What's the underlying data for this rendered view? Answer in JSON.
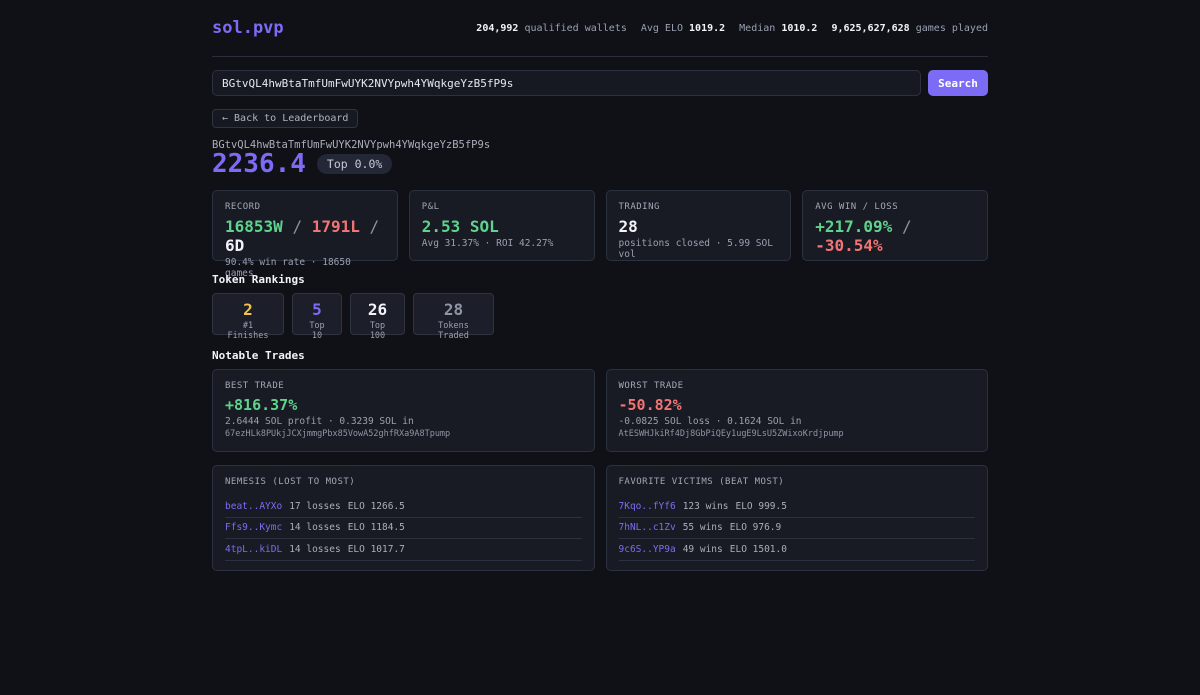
{
  "header": {
    "logo": "sol.pvp",
    "stats": [
      {
        "value": "204,992",
        "label": "qualified wallets"
      },
      {
        "label": "Avg ELO",
        "value": "1019.2"
      },
      {
        "label": "Median",
        "value": "1010.2"
      },
      {
        "value": "9,625,627,628",
        "label": "games played"
      }
    ]
  },
  "search": {
    "value": "BGtvQL4hwBtaTmfUmFwUYK2NVYpwh4YWqkgeYzB5fP9s",
    "button": "Search"
  },
  "back_label": "← Back to Leaderboard",
  "profile": {
    "address": "BGtvQL4hwBtaTmfUmFwUYK2NVYpwh4YWqkgeYzB5fP9s",
    "elo": "2236.4",
    "rank_badge": "Top 0.0%"
  },
  "cards": {
    "record": {
      "label": "RECORD",
      "wins": "16853W",
      "losses": "1791L",
      "draws": "6D",
      "sep": "/",
      "sub": "90.4% win rate · 18650 games"
    },
    "pnl": {
      "label": "P&L",
      "value": "2.53 SOL",
      "sub": "Avg 31.37% · ROI 42.27%"
    },
    "trading": {
      "label": "TRADING",
      "value": "28",
      "sub": "positions closed · 5.99 SOL vol"
    },
    "avg_win_loss": {
      "label": "AVG WIN / LOSS",
      "win": "+217.09%",
      "loss": "-30.54%",
      "sep": "/"
    }
  },
  "token_rankings": {
    "title": "Token Rankings",
    "items": [
      {
        "value": "2",
        "label": "#1 Finishes",
        "color": "#f0c24b"
      },
      {
        "value": "5",
        "label": "Top 10",
        "color": "#7c6cf5"
      },
      {
        "value": "26",
        "label": "Top 100",
        "color": "#f1f3f8"
      },
      {
        "value": "28",
        "label": "Tokens Traded",
        "color": "#8f95a5"
      }
    ]
  },
  "notable_trades": {
    "title": "Notable Trades",
    "best": {
      "label": "BEST TRADE",
      "value": "+816.37%",
      "sub": "2.6444 SOL profit · 0.3239 SOL in",
      "token": "67ezHLk8PUkjJCXjmmgPbx85VowA52ghfRXa9A8Tpump"
    },
    "worst": {
      "label": "WORST TRADE",
      "value": "-50.82%",
      "sub": "-0.0825 SOL loss · 0.1624 SOL in",
      "token": "AtESWHJkiRf4Dj8GbPiQEy1ugE9LsU5ZWixoKrdjpump"
    }
  },
  "nemesis": {
    "title": "NEMESIS (LOST TO MOST)",
    "rows": [
      {
        "name": "beat..AYXo",
        "count": "17 losses",
        "elo": "ELO 1266.5"
      },
      {
        "name": "Ffs9..Kymc",
        "count": "14 losses",
        "elo": "ELO 1184.5"
      },
      {
        "name": "4tpL..kiDL",
        "count": "14 losses",
        "elo": "ELO 1017.7"
      }
    ]
  },
  "victims": {
    "title": "FAVORITE VICTIMS (BEAT MOST)",
    "rows": [
      {
        "name": "7Kqo..fYf6",
        "count": "123 wins",
        "elo": "ELO 999.5"
      },
      {
        "name": "7hNL..c1Zv",
        "count": "55 wins",
        "elo": "ELO 976.9"
      },
      {
        "name": "9c6S..YP9a",
        "count": "49 wins",
        "elo": "ELO 1501.0"
      }
    ]
  }
}
